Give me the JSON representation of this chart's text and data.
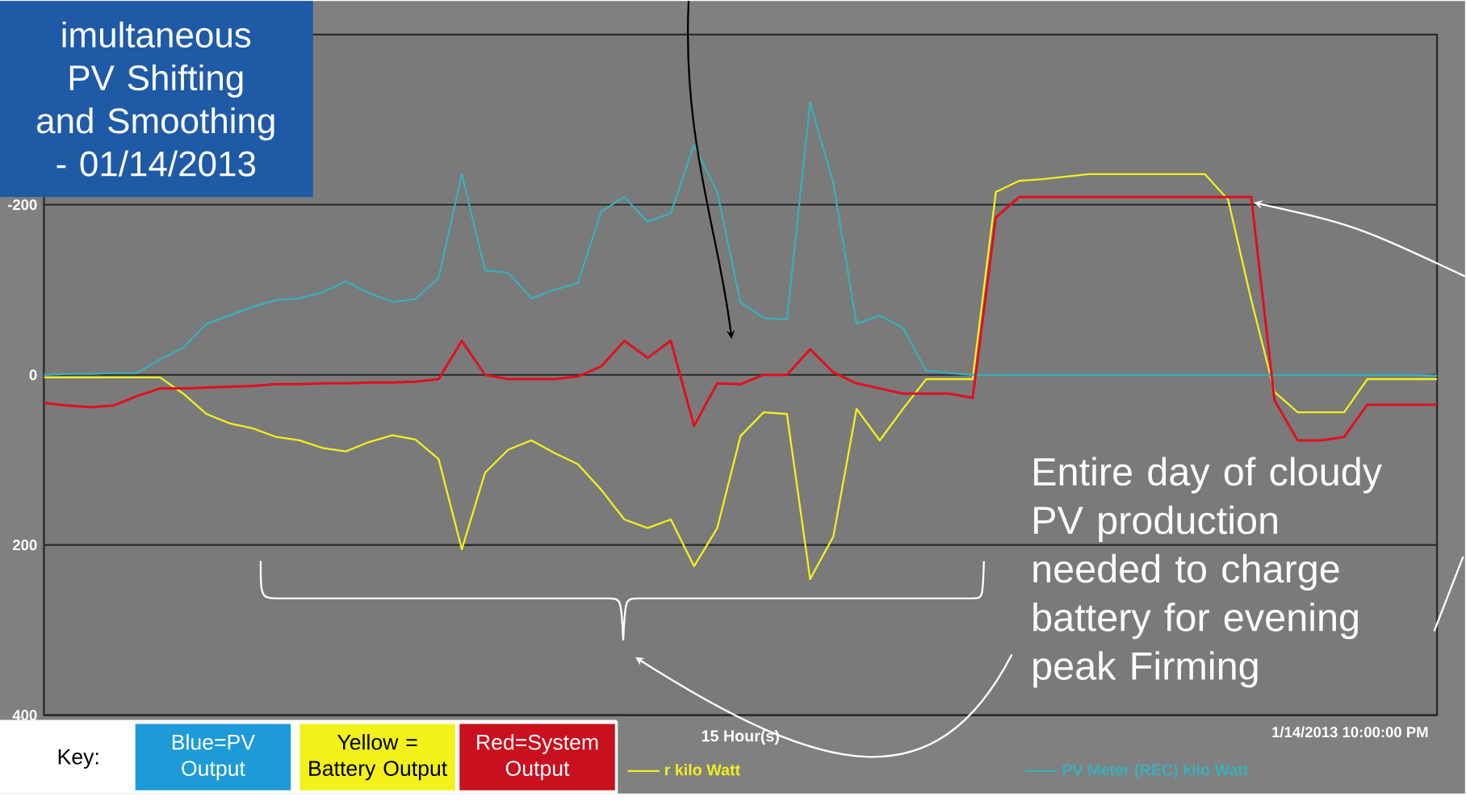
{
  "chart_data": {
    "type": "line",
    "title": "imultaneous PV Shifting and Smoothing - 01/14/2013",
    "xlabel": "15 Hour(s)",
    "annotations": [
      "Key:",
      "Blue=PV Output",
      "Yellow = Battery Output",
      "Red=System Output",
      "Entire day of cloudy PV production needed to charge battery for evening peak Firming",
      "1/14/2013 10:00:00 PM"
    ],
    "categories": [
      null,
      null,
      null,
      null,
      null,
      null,
      null,
      null,
      null,
      null,
      null,
      null,
      null,
      null,
      null,
      null,
      null,
      null,
      null,
      null,
      null,
      null,
      null,
      null,
      null,
      null,
      null,
      null,
      null,
      null,
      null,
      null,
      null,
      null,
      null,
      null,
      null,
      null,
      null,
      null,
      null,
      null,
      null,
      null,
      null,
      null,
      null,
      null,
      null,
      null,
      null,
      null,
      null,
      null,
      null,
      null,
      null,
      null,
      null,
      null,
      null
    ],
    "tick_labels": "y",
    "ylim": [
      400,
      -400
    ],
    "yticks": [
      -200,
      0,
      200,
      400
    ],
    "grid": true,
    "legend": "bottom",
    "series": [
      {
        "name": "r kilo Watt",
        "color": "#f0f020",
        "values": [
          3,
          3,
          3,
          3,
          3,
          3,
          22,
          46,
          57,
          63,
          73,
          77,
          86,
          90,
          79,
          71,
          76,
          99,
          205,
          115,
          88,
          77,
          92,
          105,
          135,
          170,
          180,
          170,
          225,
          180,
          72,
          44,
          46,
          240,
          190,
          40,
          77,
          40,
          5,
          5,
          5,
          -215,
          -228,
          -230,
          -233,
          -236,
          -236,
          -236,
          -236,
          -236,
          -236,
          -206,
          -88,
          20,
          44,
          44,
          44,
          5,
          5,
          5,
          5
        ]
      },
      {
        "name": "PV Meter (REC) kilo Watt",
        "color": "#3aafb9",
        "values": [
          0,
          -1,
          -1,
          -2,
          -2,
          -18,
          -32,
          -60,
          -70,
          -80,
          -88,
          -90,
          -97,
          -110,
          -96,
          -86,
          -89,
          -114,
          -236,
          -123,
          -120,
          -90,
          -100,
          -108,
          -192,
          -209,
          -180,
          -190,
          -270,
          -215,
          -85,
          -67,
          -65,
          -320,
          -225,
          -60,
          -70,
          -55,
          -5,
          -2,
          0,
          0,
          0,
          0,
          0,
          0,
          0,
          0,
          0,
          0,
          0,
          0,
          0,
          0,
          0,
          0,
          0,
          0,
          0,
          0,
          1
        ]
      },
      {
        "color": "#e0101e",
        "values": [
          33,
          36,
          38,
          36,
          25,
          16,
          16,
          15,
          14,
          13,
          11,
          11,
          10,
          10,
          9,
          9,
          8,
          5,
          -40,
          0,
          5,
          5,
          5,
          2,
          -10,
          -40,
          -20,
          -40,
          60,
          10,
          11,
          0,
          0,
          -30,
          -3,
          10,
          16,
          22,
          22,
          22,
          27,
          -185,
          -209,
          -209,
          -209,
          -209,
          -209,
          -209,
          -209,
          -209,
          -209,
          -209,
          -209,
          30,
          77,
          77,
          73,
          35,
          35,
          35,
          35
        ]
      }
    ]
  }
}
